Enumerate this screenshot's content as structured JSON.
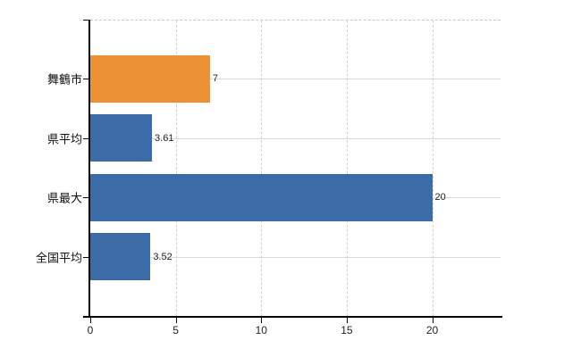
{
  "chart_data": {
    "type": "bar",
    "orientation": "horizontal",
    "title": "",
    "xlabel": "",
    "ylabel": "",
    "categories": [
      "舞鶴市",
      "県平均",
      "県最大",
      "全国平均"
    ],
    "values": [
      7,
      3.61,
      20,
      3.52
    ],
    "value_labels": [
      "7",
      "3.61",
      "20",
      "3.52"
    ],
    "bar_colors": [
      "#EC9136",
      "#3B6CA8",
      "#3B6CA8",
      "#3B6CA8"
    ],
    "x_ticks": [
      0,
      5,
      10,
      15,
      20
    ],
    "x_tick_labels": [
      "0",
      "5",
      "10",
      "15",
      "20"
    ],
    "xlim": [
      0,
      24
    ],
    "grid": true,
    "legend": false,
    "colors": {
      "background": "#ffffff",
      "axis": "#000000",
      "gridline_horizontal": "#d6dcd6",
      "gridline_vertical": "#d2d2d2",
      "plot_top_border": "#c9c9c9",
      "text": "#222222"
    }
  }
}
